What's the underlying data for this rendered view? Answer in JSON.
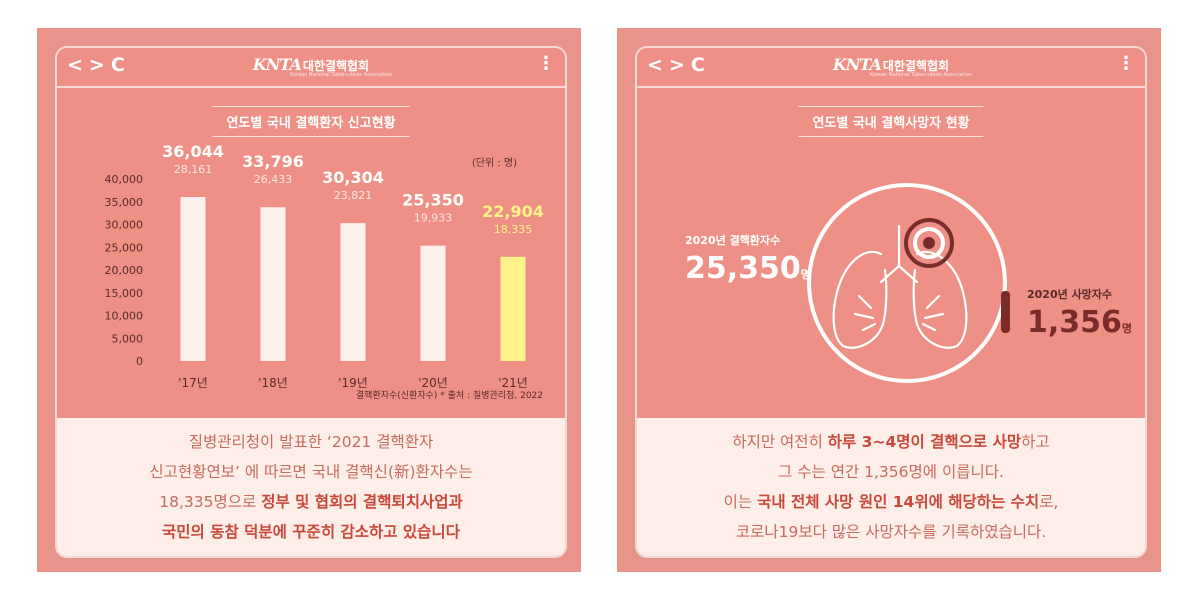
{
  "left_panel": {
    "window": {
      "nav_back": "<",
      "nav_forward": ">",
      "nav_reload": "C",
      "menu": "⋮",
      "logo_mark": "KNTA",
      "logo_name": "대한결핵협회",
      "logo_sub": "Korean National Tuberculosis Association"
    },
    "badge": "연도별 국내 결핵환자 신고현황",
    "unit": "(단위 : 명)",
    "source": "결핵환자수(신환자수) * 출처 : 질병관리청, 2022",
    "text_lines": [
      "질병관리청이 발표한 ‘2021 결핵환자",
      "신고현황연보’ 에 따르면 국내 결핵신(新)환자수는",
      "18,335명으로 ",
      "정부 및 협회의 결핵퇴치사업과",
      "국민의 동참 덕분에 꾸준히 감소하고 있습니다"
    ]
  },
  "right_panel": {
    "window": {
      "nav_back": "<",
      "nav_forward": ">",
      "nav_reload": "C",
      "menu": "⋮",
      "logo_mark": "KNTA",
      "logo_name": "대한결핵협회",
      "logo_sub": "Korean National Tuberculosis Association"
    },
    "badge": "연도별 국내 결핵사망자 현황",
    "patients_label": "2020년 결핵환자수",
    "patients_value": "25,350",
    "patients_unit": "명",
    "deaths_label": "2020년 사망자수",
    "deaths_value": "1,356",
    "deaths_unit": "명",
    "lungs_icon": "lungs-icon",
    "target_icon": "target-icon",
    "text_lines": [
      "하지만 여전히 ",
      "하루 3~4명이 결핵으로 사망",
      "하고",
      "그 수는 연간 1,356명에 이릅니다.",
      "이는 ",
      "국내 전체 사망 원인 14위에 해당하는 수치",
      "로,",
      "코로나19보다 많은 사망자수를 기록하였습니다."
    ]
  },
  "colors": {
    "card": "#e8948a",
    "panel": "#ef9086",
    "bar": "#fff0ee",
    "highlight_bar": "#fff38a",
    "dark_accent": "#7a2c28"
  },
  "chart_data": [
    {
      "type": "bar",
      "title": "연도별 국내 결핵환자 신고현황",
      "categories": [
        "'17년",
        "'18년",
        "'19년",
        "'20년",
        "'21년"
      ],
      "values": [
        36044,
        33796,
        30304,
        25350,
        22904
      ],
      "value_labels": [
        "36,044",
        "33,796",
        "30,304",
        "25,350",
        "22,904"
      ],
      "sub_values": [
        28161,
        26433,
        23821,
        19933,
        18335
      ],
      "sub_labels": [
        "28,161",
        "26,433",
        "23,821",
        "19,933",
        "18,335"
      ],
      "ylim": [
        0,
        40000
      ],
      "yticks": [
        0,
        5000,
        10000,
        15000,
        20000,
        25000,
        30000,
        35000,
        40000
      ],
      "ytick_labels": [
        "0",
        "5,000",
        "10,000",
        "15,000",
        "20,000",
        "25,000",
        "30,000",
        "35,000",
        "40,000"
      ],
      "highlight_index": 4,
      "grid": false
    }
  ]
}
